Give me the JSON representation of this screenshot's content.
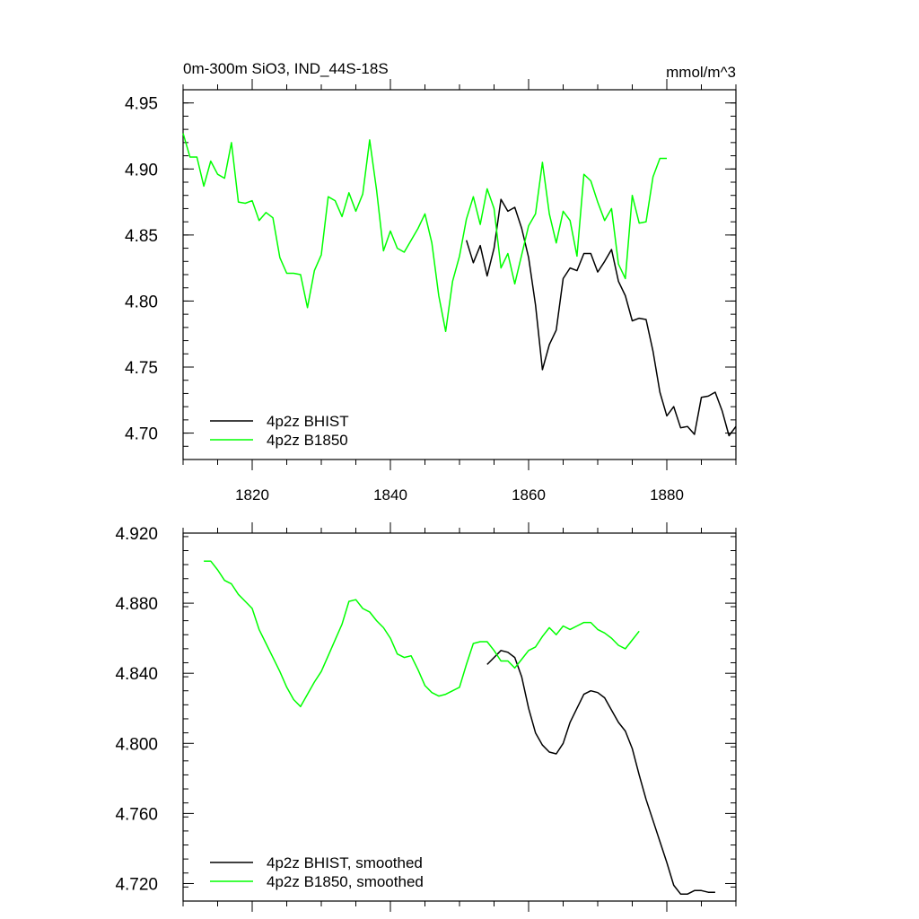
{
  "chart_data": [
    {
      "type": "line",
      "title": "0m-300m SiO3, IND_44S-18S",
      "units": "mmol/m^3",
      "xlim": [
        1810,
        1890
      ],
      "ylim": [
        4.68,
        4.96
      ],
      "x_major_ticks": [
        1820,
        1840,
        1860,
        1880
      ],
      "x_tick_labels": [
        "1820",
        "1840",
        "1860",
        "1880"
      ],
      "x_minor_step": 5,
      "y_major_ticks": [
        4.7,
        4.75,
        4.8,
        4.85,
        4.9,
        4.95
      ],
      "y_tick_labels": [
        "4.70",
        "4.75",
        "4.80",
        "4.85",
        "4.90",
        "4.95"
      ],
      "y_minor_step": 0.01,
      "legend": [
        "4p2z BHIST",
        "4p2z B1850"
      ],
      "series": [
        {
          "name": "4p2z BHIST",
          "color": "#000000",
          "x": [
            1851,
            1852,
            1853,
            1854,
            1855,
            1856,
            1857,
            1858,
            1859,
            1860,
            1861,
            1862,
            1863,
            1864,
            1865,
            1866,
            1867,
            1868,
            1869,
            1870,
            1871,
            1872,
            1873,
            1874,
            1875,
            1876,
            1877,
            1878,
            1879,
            1880,
            1881,
            1882,
            1883,
            1884,
            1885,
            1886,
            1887,
            1888,
            1889,
            1890
          ],
          "y": [
            4.846,
            4.829,
            4.842,
            4.819,
            4.84,
            4.877,
            4.868,
            4.871,
            4.855,
            4.833,
            4.797,
            4.748,
            4.767,
            4.778,
            4.817,
            4.825,
            4.823,
            4.836,
            4.836,
            4.822,
            4.83,
            4.839,
            4.815,
            4.804,
            4.785,
            4.787,
            4.786,
            4.762,
            4.731,
            4.713,
            4.72,
            4.704,
            4.705,
            4.699,
            4.727,
            4.728,
            4.731,
            4.717,
            4.698,
            4.705
          ]
        },
        {
          "name": "4p2z B1850",
          "color": "#00ff00",
          "x": [
            1810,
            1811,
            1812,
            1813,
            1814,
            1815,
            1816,
            1817,
            1818,
            1819,
            1820,
            1821,
            1822,
            1823,
            1824,
            1825,
            1826,
            1827,
            1828,
            1829,
            1830,
            1831,
            1832,
            1833,
            1834,
            1835,
            1836,
            1837,
            1838,
            1839,
            1840,
            1841,
            1842,
            1843,
            1844,
            1845,
            1846,
            1847,
            1848,
            1849,
            1850,
            1851,
            1852,
            1853,
            1854,
            1855,
            1856,
            1857,
            1858,
            1859,
            1860,
            1861,
            1862,
            1863,
            1864,
            1865,
            1866,
            1867,
            1868,
            1869,
            1870,
            1871,
            1872,
            1873,
            1874,
            1875,
            1876,
            1877,
            1878,
            1879,
            1880
          ],
          "y": [
            4.927,
            4.909,
            4.909,
            4.887,
            4.906,
            4.896,
            4.893,
            4.92,
            4.875,
            4.874,
            4.876,
            4.861,
            4.867,
            4.863,
            4.833,
            4.821,
            4.821,
            4.82,
            4.795,
            4.823,
            4.835,
            4.879,
            4.876,
            4.864,
            4.882,
            4.868,
            4.881,
            4.922,
            4.884,
            4.838,
            4.853,
            4.84,
            4.837,
            4.846,
            4.855,
            4.866,
            4.844,
            4.804,
            4.777,
            4.815,
            4.834,
            4.862,
            4.879,
            4.858,
            4.885,
            4.87,
            4.825,
            4.836,
            4.813,
            4.835,
            4.857,
            4.866,
            4.905,
            4.866,
            4.844,
            4.868,
            4.861,
            4.834,
            4.896,
            4.891,
            4.875,
            4.861,
            4.87,
            4.828,
            4.817,
            4.88,
            4.859,
            4.86,
            4.894,
            4.908,
            4.908
          ]
        }
      ]
    },
    {
      "type": "line",
      "title": "",
      "xlim": [
        1810,
        1890
      ],
      "ylim": [
        4.71,
        4.92
      ],
      "x_major_ticks": [
        1820,
        1840,
        1860,
        1880
      ],
      "x_minor_step": 5,
      "y_major_ticks": [
        4.72,
        4.76,
        4.8,
        4.84,
        4.88,
        4.92
      ],
      "y_tick_labels": [
        "4.720",
        "4.760",
        "4.800",
        "4.840",
        "4.880",
        "4.920"
      ],
      "y_minor_step": 0.008,
      "legend": [
        "4p2z BHIST, smoothed",
        "4p2z B1850, smoothed"
      ],
      "series": [
        {
          "name": "4p2z BHIST, smoothed",
          "color": "#000000",
          "x": [
            1854,
            1855,
            1856,
            1857,
            1858,
            1859,
            1860,
            1861,
            1862,
            1863,
            1864,
            1865,
            1866,
            1867,
            1868,
            1869,
            1870,
            1871,
            1872,
            1873,
            1874,
            1875,
            1876,
            1877,
            1878,
            1879,
            1880,
            1881,
            1882,
            1883,
            1884,
            1885,
            1886,
            1887
          ],
          "y": [
            4.845,
            4.849,
            4.853,
            4.852,
            4.849,
            4.838,
            4.82,
            4.806,
            4.799,
            4.795,
            4.794,
            4.8,
            4.812,
            4.82,
            4.828,
            4.83,
            4.829,
            4.826,
            4.819,
            4.812,
            4.807,
            4.797,
            4.782,
            4.768,
            4.756,
            4.744,
            4.732,
            4.719,
            4.714,
            4.714,
            4.716,
            4.716,
            4.715,
            4.715
          ]
        },
        {
          "name": "4p2z B1850, smoothed",
          "color": "#00ff00",
          "x": [
            1813,
            1814,
            1815,
            1816,
            1817,
            1818,
            1819,
            1820,
            1821,
            1822,
            1823,
            1824,
            1825,
            1826,
            1827,
            1828,
            1829,
            1830,
            1831,
            1832,
            1833,
            1834,
            1835,
            1836,
            1837,
            1838,
            1839,
            1840,
            1841,
            1842,
            1843,
            1844,
            1845,
            1846,
            1847,
            1848,
            1849,
            1850,
            1851,
            1852,
            1853,
            1854,
            1855,
            1856,
            1857,
            1858,
            1859,
            1860,
            1861,
            1862,
            1863,
            1864,
            1865,
            1866,
            1867,
            1868,
            1869,
            1870,
            1871,
            1872,
            1873,
            1874,
            1875,
            1876
          ],
          "y": [
            4.904,
            4.904,
            4.899,
            4.893,
            4.891,
            4.885,
            4.881,
            4.877,
            4.865,
            4.857,
            4.849,
            4.841,
            4.832,
            4.825,
            4.821,
            4.828,
            4.835,
            4.841,
            4.85,
            4.859,
            4.868,
            4.881,
            4.882,
            4.877,
            4.875,
            4.87,
            4.866,
            4.86,
            4.851,
            4.849,
            4.85,
            4.842,
            4.833,
            4.829,
            4.827,
            4.828,
            4.83,
            4.832,
            4.845,
            4.857,
            4.858,
            4.858,
            4.853,
            4.847,
            4.847,
            4.843,
            4.848,
            4.853,
            4.855,
            4.861,
            4.866,
            4.862,
            4.867,
            4.865,
            4.867,
            4.869,
            4.869,
            4.865,
            4.863,
            4.86,
            4.856,
            4.854,
            4.859,
            4.864
          ]
        }
      ]
    }
  ]
}
